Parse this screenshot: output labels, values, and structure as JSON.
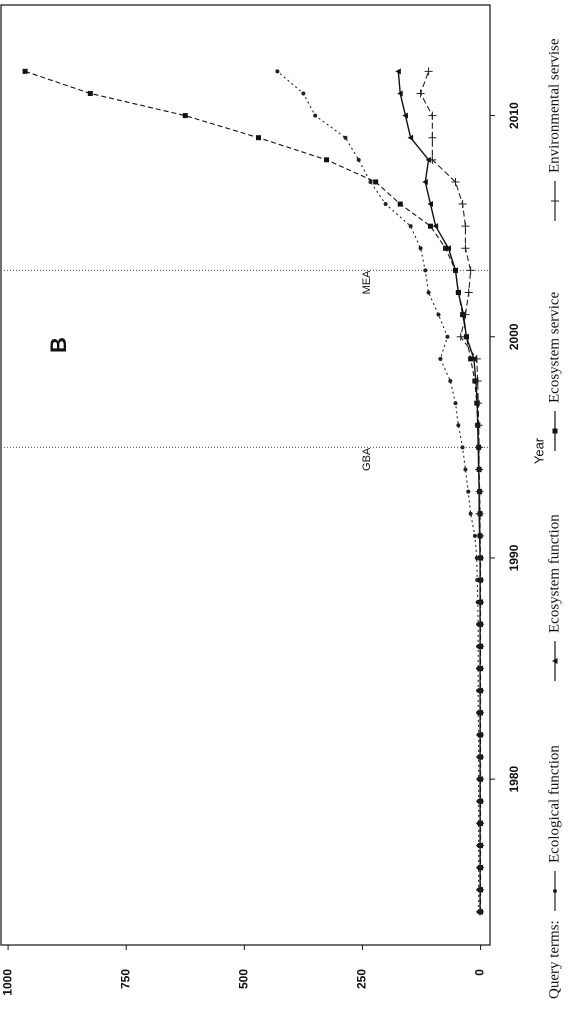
{
  "chart_data": {
    "type": "line",
    "title": "B",
    "x_label": "Year",
    "legend_title": "Query terms:",
    "x": [
      1974,
      1975,
      1976,
      1977,
      1978,
      1979,
      1980,
      1981,
      1982,
      1983,
      1984,
      1985,
      1986,
      1987,
      1988,
      1989,
      1990,
      1991,
      1992,
      1993,
      1994,
      1995,
      1996,
      1997,
      1998,
      1999,
      2000,
      2001,
      2002,
      2003,
      2004,
      2005,
      2006,
      2007,
      2008,
      2009,
      2010,
      2011,
      2012
    ],
    "xlim": [
      1972.5,
      2015
    ],
    "xticks": [
      1980,
      1990,
      2000,
      2010
    ],
    "ylim": [
      -20,
      1015
    ],
    "yticks": [
      0,
      250,
      500,
      750,
      1000
    ],
    "series": [
      {
        "name": "Ecological function",
        "color": "#222222",
        "marker": "circle",
        "dash": "2,3",
        "values": [
          4,
          4,
          4,
          4,
          4,
          4,
          4,
          4,
          4,
          5,
          5,
          5,
          5,
          5,
          6,
          7,
          8,
          12,
          21,
          26,
          32,
          38,
          47,
          53,
          64,
          85,
          70,
          89,
          110,
          117,
          127,
          148,
          201,
          233,
          258,
          286,
          350,
          375,
          430
        ]
      },
      {
        "name": "Ecosystem function",
        "color": "#111111",
        "marker": "triangle",
        "dash": "none",
        "values": [
          1,
          1,
          1,
          1,
          1,
          1,
          1,
          1,
          1,
          1,
          1,
          1,
          1,
          1,
          1,
          1,
          1,
          2,
          3,
          3,
          4,
          5,
          6,
          7,
          10,
          14,
          30,
          36,
          47,
          53,
          68,
          95,
          106,
          117,
          110,
          148,
          159,
          170,
          174
        ]
      },
      {
        "name": "Ecosystem service",
        "color": "#111111",
        "marker": "square",
        "dash": "5,3",
        "values": [
          0,
          0,
          0,
          0,
          0,
          0,
          0,
          0,
          0,
          0,
          0,
          0,
          0,
          0,
          0,
          0,
          0,
          1,
          1,
          2,
          3,
          4,
          6,
          8,
          12,
          21,
          30,
          38,
          47,
          53,
          74,
          106,
          170,
          222,
          326,
          470,
          625,
          826,
          964
        ]
      },
      {
        "name": "Environmental servise",
        "color": "#222222",
        "marker": "plus",
        "dash": "6,3",
        "values": [
          1,
          1,
          1,
          1,
          1,
          1,
          1,
          1,
          1,
          1,
          1,
          1,
          1,
          1,
          1,
          1,
          1,
          1,
          2,
          2,
          3,
          3,
          4,
          5,
          6,
          8,
          42,
          32,
          25,
          21,
          32,
          32,
          38,
          53,
          102,
          102,
          102,
          127,
          110
        ]
      }
    ],
    "annotations": [
      {
        "x": 1995,
        "text": "GBA"
      },
      {
        "x": 2003,
        "text": "MEA"
      }
    ]
  }
}
